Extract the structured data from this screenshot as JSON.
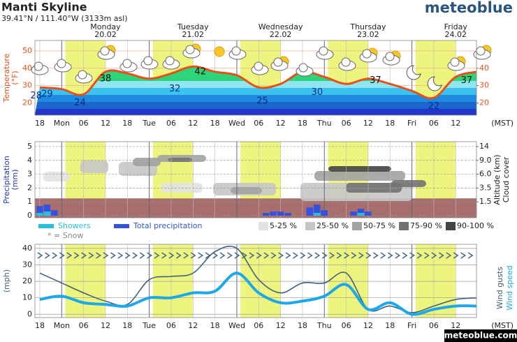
{
  "header": {
    "title": "Manti Skyline",
    "location": "39.41°N / 111.40°W (3133m asl)",
    "brand": "meteoblue",
    "footer": "meteoblue.com"
  },
  "chart_data": [
    {
      "type": "line",
      "y_label": [
        "Temperature",
        "(°F)"
      ],
      "timezone": "(MST)",
      "days": [
        {
          "x": 18,
          "name": "Monday",
          "date": "20.02"
        },
        {
          "x": 42,
          "name": "Tuesday",
          "date": "21.02"
        },
        {
          "x": 66,
          "name": "Wednesday",
          "date": "22.02"
        },
        {
          "x": 90,
          "name": "Thursday",
          "date": "23.02"
        },
        {
          "x": 114,
          "name": "Friday",
          "date": "24.02"
        }
      ],
      "x": [
        0,
        6,
        12,
        18,
        24,
        30,
        36,
        42,
        48,
        54,
        60,
        66,
        72,
        78,
        84,
        90,
        96,
        102,
        108,
        114,
        120
      ],
      "series": [
        {
          "color": "#e8501a",
          "values": [
            29,
            28,
            25,
            38,
            37,
            34,
            37,
            41,
            38,
            36,
            29,
            31,
            38,
            35,
            31,
            34,
            31,
            27,
            23,
            35,
            38
          ]
        }
      ],
      "annotations": [
        {
          "x": -1,
          "value": 28
        },
        {
          "x": 2,
          "value": 29
        },
        {
          "x": 11,
          "value": 24
        },
        {
          "x": 18,
          "value": 38
        },
        {
          "x": 37,
          "value": 32
        },
        {
          "x": 44,
          "value": 42
        },
        {
          "x": 61,
          "value": 25
        },
        {
          "x": 76,
          "value": 30
        },
        {
          "x": 92,
          "value": 37
        },
        {
          "x": 108,
          "value": 22
        },
        {
          "x": 117,
          "value": 37
        }
      ],
      "xlim": [
        -1.34,
        119.7
      ],
      "xticks": [
        {
          "value": 0,
          "label": "18"
        },
        {
          "value": 6,
          "label": "Mon"
        },
        {
          "value": 12,
          "label": "06"
        },
        {
          "value": 18,
          "label": "12"
        },
        {
          "value": 24,
          "label": "18"
        },
        {
          "value": 30,
          "label": "Tue"
        },
        {
          "value": 36,
          "label": "06"
        },
        {
          "value": 42,
          "label": "12"
        },
        {
          "value": 48,
          "label": "18"
        },
        {
          "value": 54,
          "label": "Wed"
        },
        {
          "value": 60,
          "label": "06"
        },
        {
          "value": 66,
          "label": "12"
        },
        {
          "value": 72,
          "label": "18"
        },
        {
          "value": 78,
          "label": "Thu"
        },
        {
          "value": 84,
          "label": "06"
        },
        {
          "value": 90,
          "label": "12"
        },
        {
          "value": 96,
          "label": "18"
        },
        {
          "value": 102,
          "label": "Fri"
        },
        {
          "value": 108,
          "label": "06"
        },
        {
          "value": 114,
          "label": "12"
        }
      ],
      "ylim": [
        13,
        56
      ],
      "yticks": [
        20,
        30,
        40,
        50
      ],
      "y2lim": [
        13,
        56
      ],
      "y2ticks": [
        20,
        30,
        40,
        50
      ]
    },
    {
      "type": "bar",
      "y_label": [
        "Precipitation",
        "(mm)"
      ],
      "y2_label": [
        "Altitude (km)",
        "Cloud cover"
      ],
      "x": [
        0,
        2,
        4,
        62,
        64,
        66,
        68,
        74,
        76,
        78,
        86,
        88,
        90
      ],
      "series": [
        {
          "name": "Showers",
          "color": "#22c4dd",
          "values": [
            0.2,
            0.3,
            0,
            0,
            0,
            0,
            0,
            0,
            0.2,
            0,
            0,
            0.2,
            0
          ]
        },
        {
          "name": "Total precipitation",
          "color": "#3352dd",
          "values": [
            0.7,
            0.8,
            0.4,
            0.2,
            0.3,
            0.3,
            0.2,
            0.6,
            0.8,
            0.4,
            0.3,
            0.5,
            0.3
          ]
        }
      ],
      "snow_note": "* = Snow",
      "cloud_cover_legend": [
        {
          "label": "5-25 %",
          "color": "#e2e2e2"
        },
        {
          "label": "25-50 %",
          "color": "#c6c6c6"
        },
        {
          "label": "50-75 %",
          "color": "#a2a2a2"
        },
        {
          "label": "75-90 %",
          "color": "#727272"
        },
        {
          "label": "90-100 %",
          "color": "#444444"
        }
      ],
      "xlim": [
        -1.34,
        119.7
      ],
      "xticks": [
        0,
        6,
        12,
        18,
        24,
        30,
        36,
        42,
        48,
        54,
        60,
        66,
        72,
        78,
        84,
        90,
        96,
        102,
        108,
        114
      ],
      "ylim": [
        -0.15,
        5.35
      ],
      "yticks": [
        0,
        1,
        2,
        3,
        4,
        5
      ],
      "y2ticks": [
        1.5,
        3.5,
        {
          "value": 6,
          "label": "6.0"
        },
        {
          "value": 9,
          "label": "9.0"
        },
        14
      ]
    },
    {
      "type": "line",
      "y_label": [
        "(mph)"
      ],
      "timezone": "(MST)",
      "x": [
        0,
        6,
        12,
        18,
        24,
        30,
        36,
        42,
        48,
        54,
        60,
        66,
        72,
        78,
        84,
        90,
        96,
        102,
        108,
        114,
        120
      ],
      "series": [
        {
          "name": "Wind gusts",
          "color": "#41627f",
          "values": [
            25,
            19,
            13,
            8,
            6,
            21,
            23,
            25,
            38,
            40,
            21,
            13,
            19,
            19,
            25,
            3,
            5,
            1,
            5,
            9,
            10
          ]
        },
        {
          "name": "Wind speed",
          "color": "#1ea8ea",
          "values": [
            9,
            11,
            7,
            6,
            5,
            10,
            10,
            13,
            14,
            25,
            13,
            7,
            8,
            11,
            18,
            3,
            7,
            0,
            3,
            5,
            5
          ]
        }
      ],
      "xlim": [
        -1.34,
        119.7
      ],
      "xticks": [
        {
          "value": 0,
          "label": "18"
        },
        {
          "value": 6,
          "label": "Mon"
        },
        {
          "value": 12,
          "label": "06"
        },
        {
          "value": 18,
          "label": "12"
        },
        {
          "value": 24,
          "label": "18"
        },
        {
          "value": 30,
          "label": "Tue"
        },
        {
          "value": 36,
          "label": "06"
        },
        {
          "value": 42,
          "label": "12"
        },
        {
          "value": 48,
          "label": "18"
        },
        {
          "value": 54,
          "label": "Wed"
        },
        {
          "value": 60,
          "label": "06"
        },
        {
          "value": 66,
          "label": "12"
        },
        {
          "value": 72,
          "label": "18"
        },
        {
          "value": 78,
          "label": "Thu"
        },
        {
          "value": 84,
          "label": "06"
        },
        {
          "value": 90,
          "label": "12"
        },
        {
          "value": 96,
          "label": "18"
        },
        {
          "value": 102,
          "label": "Fri"
        },
        {
          "value": 108,
          "label": "06"
        },
        {
          "value": 114,
          "label": "12"
        }
      ],
      "ylim": [
        -2,
        42.5
      ],
      "yticks": [
        0,
        10,
        20,
        30,
        40
      ]
    }
  ]
}
